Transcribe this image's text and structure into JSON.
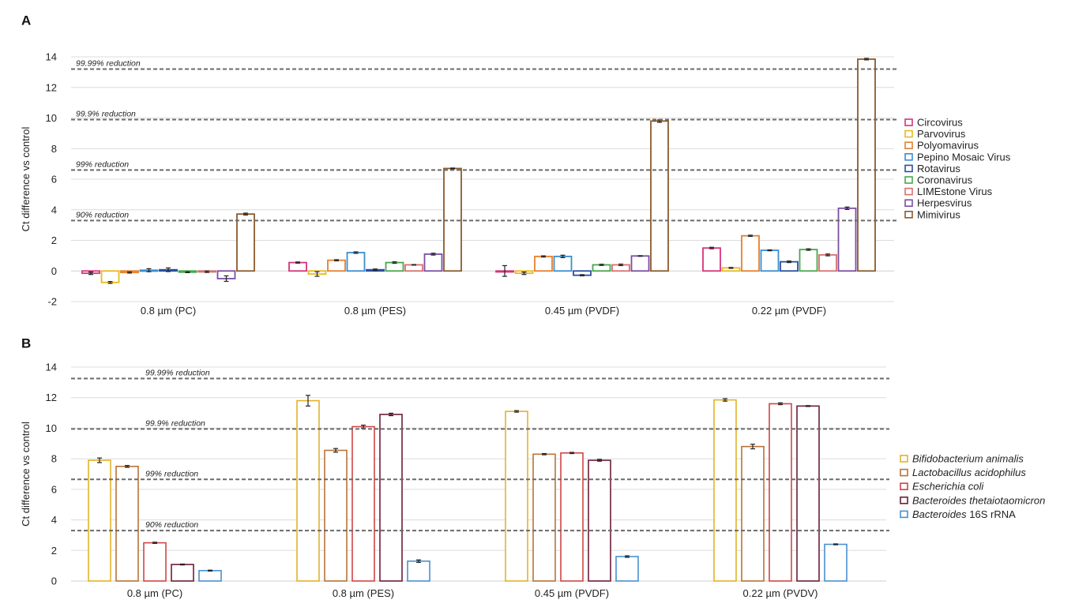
{
  "chart_data": [
    {
      "panel_label": "A",
      "type": "bar",
      "ylabel": "Ct difference vs control",
      "ylim": [
        -2,
        14
      ],
      "yticks": [
        -2,
        0,
        2,
        4,
        6,
        8,
        10,
        12,
        14
      ],
      "ytick_labels": [
        "-2",
        "0",
        "2",
        "4",
        "6",
        "8",
        "10",
        "12",
        "14"
      ],
      "grid": true,
      "legend_position": "right",
      "categories": [
        "0.8 µm (PC)",
        "0.8 µm (PES)",
        "0.45 µm (PVDF)",
        "0.22 µm (PVDF)"
      ],
      "reference_lines": [
        {
          "label": "99.99% reduction",
          "value": 13.2
        },
        {
          "label": "99.9% reduction",
          "value": 9.9
        },
        {
          "label": "99% reduction",
          "value": 6.6
        },
        {
          "label": "90% reduction",
          "value": 3.3
        }
      ],
      "series": [
        {
          "name": "Circovirus",
          "color": "#d6337a",
          "italic": false,
          "values": [
            -0.15,
            0.55,
            0.0,
            1.5
          ],
          "errors": [
            0.08,
            0.04,
            0.35,
            0.05
          ]
        },
        {
          "name": "Parvovirus",
          "color": "#e8b923",
          "italic": false,
          "values": [
            -0.75,
            -0.2,
            -0.15,
            0.2
          ],
          "errors": [
            0.06,
            0.15,
            0.08,
            0.03
          ]
        },
        {
          "name": "Polyomavirus",
          "color": "#e57f2e",
          "italic": false,
          "values": [
            -0.1,
            0.7,
            0.95,
            2.3
          ],
          "errors": [
            0.04,
            0.04,
            0.04,
            0.04
          ]
        },
        {
          "name": "Pepino Mosaic Virus",
          "color": "#3a8ed0",
          "italic": false,
          "values": [
            0.05,
            1.2,
            0.95,
            1.35
          ],
          "errors": [
            0.1,
            0.05,
            0.08,
            0.03
          ]
        },
        {
          "name": "Rotavirus",
          "color": "#2b4fa0",
          "italic": false,
          "values": [
            0.08,
            0.08,
            -0.28,
            0.6
          ],
          "errors": [
            0.12,
            0.05,
            0.04,
            0.05
          ]
        },
        {
          "name": "Coronavirus",
          "color": "#46a84c",
          "italic": false,
          "values": [
            -0.08,
            0.55,
            0.4,
            1.4
          ],
          "errors": [
            0.03,
            0.05,
            0.04,
            0.05
          ]
        },
        {
          "name": "LIMEstone Virus",
          "color": "#d86f6f",
          "italic": false,
          "values": [
            -0.05,
            0.4,
            0.4,
            1.05
          ],
          "errors": [
            0.05,
            0.02,
            0.05,
            0.06
          ]
        },
        {
          "name": "Herpesvirus",
          "color": "#7a4fa3",
          "italic": false,
          "values": [
            -0.5,
            1.1,
            0.98,
            4.1
          ],
          "errors": [
            0.18,
            0.06,
            0.02,
            0.08
          ]
        },
        {
          "name": "Mimivirus",
          "color": "#8b5a2b",
          "italic": false,
          "values": [
            3.72,
            6.7,
            9.8,
            13.85
          ],
          "errors": [
            0.06,
            0.03,
            0.08,
            0.05
          ]
        }
      ]
    },
    {
      "panel_label": "B",
      "type": "bar",
      "ylabel": "Ct difference vs control",
      "ylim": [
        0,
        14
      ],
      "yticks": [
        0,
        2,
        4,
        6,
        8,
        10,
        12,
        14
      ],
      "ytick_labels": [
        "0",
        "2",
        "4",
        "6",
        "8",
        "10",
        "12",
        "14"
      ],
      "grid": true,
      "legend_position": "right",
      "categories": [
        "0.8 µm (PC)",
        "0.8 µm (PES)",
        "0.45 µm (PVDF)",
        "0.22 µm (PVDV)"
      ],
      "reference_lines": [
        {
          "label": "99.99% reduction",
          "value": 13.25
        },
        {
          "label": "99.9% reduction",
          "value": 9.95
        },
        {
          "label": "99% reduction",
          "value": 6.65
        },
        {
          "label": "90% reduction",
          "value": 3.3
        }
      ],
      "series": [
        {
          "name": "Bifidobacterium animalis",
          "italic_part": "Bifidobacterium animalis",
          "plain_part": "",
          "color": "#e3b22a",
          "values": [
            7.9,
            11.8,
            11.1,
            11.85
          ],
          "errors": [
            0.15,
            0.35,
            0.05,
            0.08
          ]
        },
        {
          "name": "Lactobacillus acidophilus",
          "italic_part": "Lactobacillus acidophilus",
          "plain_part": "",
          "color": "#b8733a",
          "values": [
            7.5,
            8.55,
            8.3,
            8.8
          ],
          "errors": [
            0.06,
            0.12,
            0.04,
            0.15
          ]
        },
        {
          "name": "Escherichia coli",
          "italic_part": "Escherichia coli",
          "plain_part": "",
          "color": "#d04545",
          "values": [
            2.5,
            10.1,
            8.38,
            11.6
          ],
          "errors": [
            0.04,
            0.1,
            0.04,
            0.06
          ]
        },
        {
          "name": "Bacteroides thetaiotaomicron",
          "italic_part": "Bacteroides thetaiotaomicron",
          "plain_part": "",
          "color": "#6b1e3a",
          "values": [
            1.08,
            10.9,
            7.9,
            11.45
          ],
          "errors": [
            0.03,
            0.08,
            0.06,
            0.03
          ]
        },
        {
          "name": "Bacteroides 16S rRNA",
          "italic_part": "Bacteroides",
          "plain_part": " 16S rRNA",
          "color": "#4a90d0",
          "values": [
            0.68,
            1.3,
            1.6,
            2.4
          ],
          "errors": [
            0.03,
            0.08,
            0.05,
            0.03
          ]
        }
      ]
    }
  ]
}
